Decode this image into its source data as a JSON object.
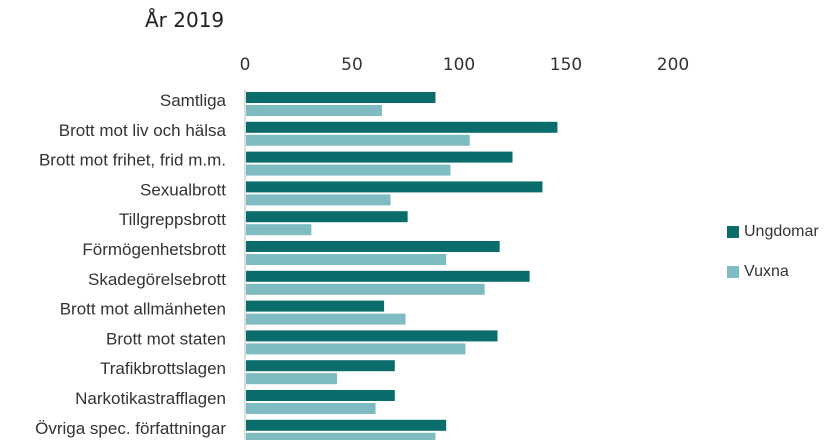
{
  "colors": {
    "ungdomar": "#0b6d6b",
    "vuxna": "#7fbcc1"
  },
  "chart_data": {
    "type": "bar",
    "orientation": "horizontal",
    "title": "År 2019",
    "xlim": [
      0,
      200
    ],
    "x_ticks": [
      "0",
      "50",
      "100",
      "150",
      "200"
    ],
    "x_axis_position": "top",
    "grid": false,
    "legend_position": "right",
    "categories": [
      "Samtliga",
      "Brott mot liv och hälsa",
      "Brott mot frihet, frid m.m.",
      "Sexualbrott",
      "Tillgreppsbrott",
      "Förmögenhetsbrott",
      "Skadegörelsebrott",
      "Brott mot allmänheten",
      "Brott mot staten",
      "Trafikbrottslagen",
      "Narkotikastrafflagen",
      "Övriga spec. författningar"
    ],
    "series": [
      {
        "name": "Ungdomar",
        "values": [
          89,
          146,
          125,
          139,
          76,
          119,
          133,
          65,
          118,
          70,
          70,
          94
        ]
      },
      {
        "name": "Vuxna",
        "values": [
          64,
          105,
          96,
          68,
          31,
          94,
          112,
          75,
          103,
          43,
          61,
          89
        ]
      }
    ]
  }
}
